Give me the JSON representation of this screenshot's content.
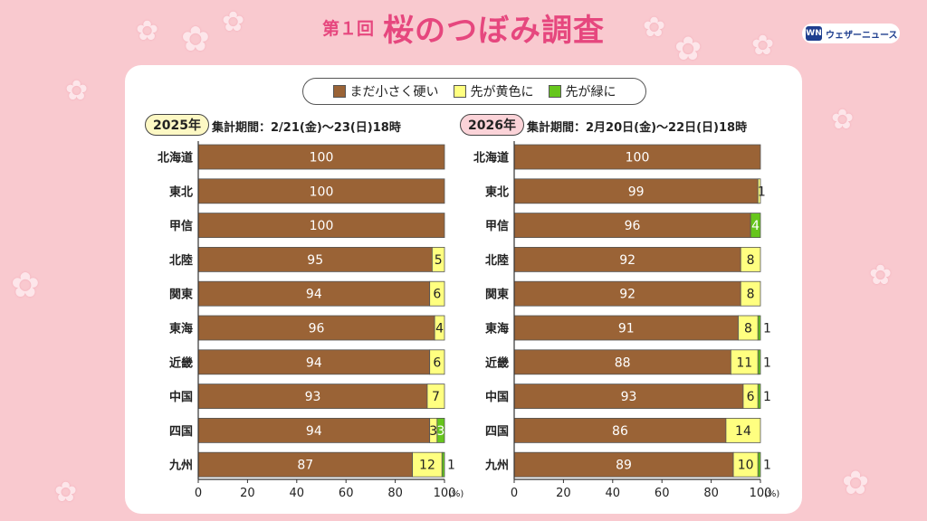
{
  "header": {
    "prefix": "第１回",
    "title": "桜のつぼみ調査",
    "logo_mark": "WN",
    "logo_text": "ウェザーニュース"
  },
  "legend": [
    {
      "label": "まだ小さく硬い",
      "color": "#9a6336"
    },
    {
      "label": "先が黄色に",
      "color": "#ffff80"
    },
    {
      "label": "先が緑に",
      "color": "#66c61c"
    }
  ],
  "chart_data": [
    {
      "type": "bar",
      "orientation": "horizontal",
      "stacked": true,
      "year_label": "2025年",
      "period": "集計期間：2/21(金)～23(日)18時",
      "categories": [
        "北海道",
        "東北",
        "甲信",
        "北陸",
        "関東",
        "東海",
        "近畿",
        "中国",
        "四国",
        "九州"
      ],
      "series": [
        {
          "name": "まだ小さく硬い",
          "values": [
            100,
            100,
            100,
            95,
            94,
            96,
            94,
            93,
            94,
            87
          ]
        },
        {
          "name": "先が黄色に",
          "values": [
            0,
            0,
            0,
            5,
            6,
            4,
            6,
            7,
            3,
            12
          ]
        },
        {
          "name": "先が緑に",
          "values": [
            0,
            0,
            0,
            0,
            0,
            0,
            0,
            0,
            3,
            1
          ]
        }
      ],
      "xlim": [
        0,
        100
      ],
      "xticks": [
        0,
        20,
        40,
        60,
        80,
        100
      ],
      "xunit": "(%)"
    },
    {
      "type": "bar",
      "orientation": "horizontal",
      "stacked": true,
      "year_label": "2026年",
      "period": "集計期間：2月20日(金)～22日(日)18時",
      "categories": [
        "北海道",
        "東北",
        "甲信",
        "北陸",
        "関東",
        "東海",
        "近畿",
        "中国",
        "四国",
        "九州"
      ],
      "series": [
        {
          "name": "まだ小さく硬い",
          "values": [
            100,
            99,
            96,
            92,
            92,
            91,
            88,
            93,
            86,
            89
          ]
        },
        {
          "name": "先が黄色に",
          "values": [
            0,
            1,
            0,
            8,
            8,
            8,
            11,
            6,
            14,
            10
          ]
        },
        {
          "name": "先が緑に",
          "values": [
            0,
            0,
            4,
            0,
            0,
            1,
            1,
            1,
            0,
            1
          ]
        }
      ],
      "xlim": [
        0,
        100
      ],
      "xticks": [
        0,
        20,
        40,
        60,
        80,
        100
      ],
      "xunit": "(%)"
    }
  ]
}
